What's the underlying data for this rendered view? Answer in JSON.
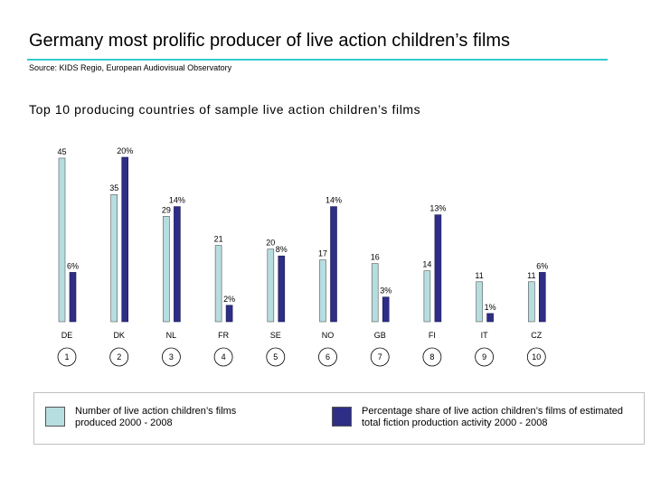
{
  "header": {
    "title": "Germany most prolific producer of live action children’s films",
    "source": "Source: KIDS Regio, European Audiovisual Observatory"
  },
  "chart_data": {
    "type": "bar",
    "title": "Top 10 producing countries of sample live action children’s films",
    "categories": [
      "DE",
      "DK",
      "NL",
      "FR",
      "SE",
      "NO",
      "GB",
      "FI",
      "IT",
      "CZ"
    ],
    "ranks": [
      "1",
      "2",
      "3",
      "4",
      "5",
      "6",
      "7",
      "8",
      "9",
      "10"
    ],
    "series": [
      {
        "name": "Number of live action children’s films produced 2000 - 2008",
        "values": [
          45,
          35,
          29,
          21,
          20,
          17,
          16,
          14,
          11,
          11
        ],
        "labels": [
          "45",
          "35",
          "29",
          "21",
          "20",
          "17",
          "16",
          "14",
          "11",
          "11"
        ],
        "color": "#b6dde0"
      },
      {
        "name": "Percentage share of live action children’s films of estimated total fiction production activity 2000 - 2008",
        "values": [
          6,
          20,
          14,
          2,
          8,
          14,
          3,
          13,
          1,
          6
        ],
        "labels": [
          "6%",
          "20%",
          "14%",
          "2%",
          "8%",
          "14%",
          "3%",
          "13%",
          "1%",
          "6%"
        ],
        "color": "#2e2e86"
      }
    ],
    "ylim_count": [
      0,
      45
    ],
    "ylim_percent": [
      0,
      20
    ],
    "grid": false,
    "legend_position": "bottom"
  },
  "legend": {
    "item1": "Number of live action children’s films produced 2000 - 2008",
    "item2": "Percentage share of live action children’s films of estimated total fiction production activity 2000 - 2008"
  }
}
